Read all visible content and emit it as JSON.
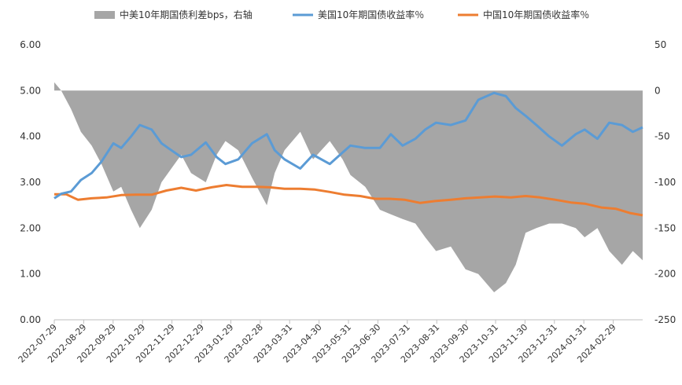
{
  "chart_data": {
    "type": "line",
    "title": "",
    "legend": [
      {
        "label": "中美10年期国债利差bps，右轴",
        "kind": "area",
        "color": "#a6a6a6"
      },
      {
        "label": "美国10年期国债收益率％",
        "kind": "line",
        "color": "#5b9bd5"
      },
      {
        "label": "中国10年期国债收益率％",
        "kind": "line",
        "color": "#ed7d31"
      }
    ],
    "legend_position": "top",
    "left_axis": {
      "min": 0,
      "max": 6,
      "step": 1,
      "tick_labels": [
        "0.00",
        "1.00",
        "2.00",
        "3.00",
        "4.00",
        "5.00",
        "6.00"
      ]
    },
    "right_axis": {
      "min": -250,
      "max": 50,
      "step": 50,
      "tick_labels": [
        "-250",
        "-200",
        "-150",
        "-100",
        "-50",
        "0",
        "50"
      ]
    },
    "x_tick_labels": [
      "2022-07-29",
      "2022-08-29",
      "2022-09-29",
      "2022-10-29",
      "2022-11-29",
      "2022-12-29",
      "2023-01-29",
      "2023-02-28",
      "2023-03-31",
      "2023-04-30",
      "2023-05-31",
      "2023-06-30",
      "2023-07-31",
      "2023-08-31",
      "2023-09-30",
      "2023-10-31",
      "2023-11-30",
      "2023-12-31",
      "2024-01-31",
      "2024-02-29"
    ],
    "grid": false,
    "series": [
      {
        "name": "中国10年期国债收益率％",
        "axis": "left",
        "x": [
          "2022-07-29",
          "2022-08-10",
          "2022-08-22",
          "2022-09-05",
          "2022-09-20",
          "2022-10-05",
          "2022-10-20",
          "2022-11-05",
          "2022-11-20",
          "2022-12-05",
          "2022-12-20",
          "2023-01-05",
          "2023-01-20",
          "2023-02-05",
          "2023-02-20",
          "2023-03-05",
          "2023-03-20",
          "2023-04-05",
          "2023-04-20",
          "2023-05-05",
          "2023-05-20",
          "2023-06-05",
          "2023-06-20",
          "2023-07-05",
          "2023-07-20",
          "2023-08-05",
          "2023-08-20",
          "2023-09-05",
          "2023-09-20",
          "2023-10-05",
          "2023-10-20",
          "2023-11-05",
          "2023-11-20",
          "2023-12-05",
          "2023-12-20",
          "2024-01-05",
          "2024-01-20",
          "2024-02-05",
          "2024-02-20",
          "2024-03-05",
          "2024-03-18"
        ],
        "y": [
          2.74,
          2.74,
          2.62,
          2.65,
          2.67,
          2.72,
          2.73,
          2.73,
          2.82,
          2.88,
          2.82,
          2.89,
          2.94,
          2.9,
          2.9,
          2.89,
          2.86,
          2.86,
          2.84,
          2.79,
          2.73,
          2.7,
          2.64,
          2.64,
          2.62,
          2.55,
          2.59,
          2.62,
          2.65,
          2.67,
          2.69,
          2.67,
          2.7,
          2.67,
          2.62,
          2.56,
          2.53,
          2.45,
          2.42,
          2.33,
          2.28
        ]
      },
      {
        "name": "美国10年期国债收益率％",
        "axis": "left",
        "x": [
          "2022-07-29",
          "2022-08-05",
          "2022-08-15",
          "2022-08-25",
          "2022-09-05",
          "2022-09-15",
          "2022-09-27",
          "2022-10-05",
          "2022-10-15",
          "2022-10-24",
          "2022-11-05",
          "2022-11-15",
          "2022-11-25",
          "2022-12-05",
          "2022-12-15",
          "2022-12-30",
          "2023-01-10",
          "2023-01-19",
          "2023-02-01",
          "2023-02-15",
          "2023-03-02",
          "2023-03-10",
          "2023-03-20",
          "2023-04-05",
          "2023-04-18",
          "2023-05-05",
          "2023-05-18",
          "2023-05-26",
          "2023-06-10",
          "2023-06-25",
          "2023-07-06",
          "2023-07-18",
          "2023-07-31",
          "2023-08-10",
          "2023-08-21",
          "2023-09-05",
          "2023-09-20",
          "2023-10-03",
          "2023-10-19",
          "2023-10-31",
          "2023-11-10",
          "2023-11-20",
          "2023-12-01",
          "2023-12-14",
          "2023-12-27",
          "2024-01-10",
          "2024-01-19",
          "2024-02-01",
          "2024-02-13",
          "2024-02-26",
          "2024-03-08",
          "2024-03-18"
        ],
        "y": [
          2.65,
          2.75,
          2.8,
          3.05,
          3.2,
          3.45,
          3.85,
          3.75,
          4.0,
          4.25,
          4.15,
          3.85,
          3.7,
          3.55,
          3.6,
          3.87,
          3.55,
          3.4,
          3.5,
          3.85,
          4.05,
          3.7,
          3.5,
          3.3,
          3.6,
          3.4,
          3.65,
          3.8,
          3.75,
          3.75,
          4.05,
          3.8,
          3.95,
          4.15,
          4.3,
          4.25,
          4.35,
          4.8,
          4.95,
          4.88,
          4.62,
          4.45,
          4.25,
          4.0,
          3.8,
          4.05,
          4.15,
          3.95,
          4.3,
          4.25,
          4.1,
          4.2
        ]
      },
      {
        "name": "中美10年期国债利差bps，右轴",
        "axis": "right",
        "x": [
          "2022-07-29",
          "2022-08-05",
          "2022-08-15",
          "2022-08-25",
          "2022-09-05",
          "2022-09-15",
          "2022-09-27",
          "2022-10-05",
          "2022-10-15",
          "2022-10-24",
          "2022-11-05",
          "2022-11-15",
          "2022-11-25",
          "2022-12-05",
          "2022-12-15",
          "2022-12-30",
          "2023-01-10",
          "2023-01-19",
          "2023-02-01",
          "2023-02-15",
          "2023-03-02",
          "2023-03-10",
          "2023-03-20",
          "2023-04-05",
          "2023-04-18",
          "2023-05-05",
          "2023-05-18",
          "2023-05-26",
          "2023-06-10",
          "2023-06-25",
          "2023-07-06",
          "2023-07-18",
          "2023-07-31",
          "2023-08-10",
          "2023-08-21",
          "2023-09-05",
          "2023-09-20",
          "2023-10-03",
          "2023-10-19",
          "2023-10-31",
          "2023-11-10",
          "2023-11-20",
          "2023-12-01",
          "2023-12-14",
          "2023-12-27",
          "2024-01-10",
          "2024-01-19",
          "2024-02-01",
          "2024-02-13",
          "2024-02-26",
          "2024-03-08",
          "2024-03-18"
        ],
        "y": [
          9,
          0,
          -20,
          -45,
          -60,
          -80,
          -110,
          -105,
          -130,
          -150,
          -130,
          -100,
          -85,
          -70,
          -90,
          -100,
          -70,
          -55,
          -65,
          -95,
          -125,
          -90,
          -65,
          -45,
          -75,
          -55,
          -75,
          -92,
          -105,
          -130,
          -135,
          -140,
          -145,
          -160,
          -175,
          -170,
          -195,
          -200,
          -220,
          -210,
          -190,
          -155,
          -150,
          -145,
          -145,
          -150,
          -160,
          -150,
          -175,
          -190,
          -175,
          -185
        ]
      }
    ]
  }
}
